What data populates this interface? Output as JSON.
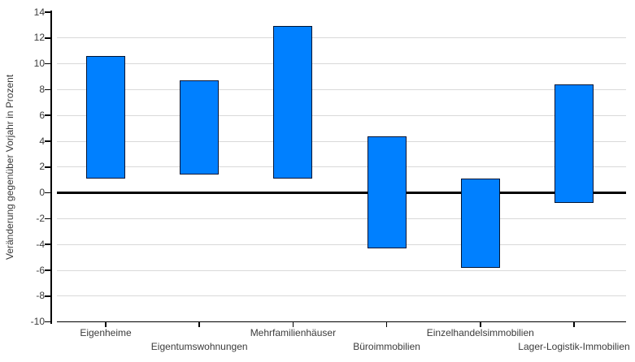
{
  "chart_data": {
    "type": "bar",
    "variant": "floating-range-columns",
    "title": "",
    "xlabel": "",
    "ylabel": "Veränderung gegenüber Vorjahr in Prozent",
    "categories": [
      "Eigenheime",
      "Eigentumswohnungen",
      "Mehrfamilienhäuser",
      "Büroimmobilien",
      "Einzelhandelsimmobilien",
      "Lager-Logistik-Immobilien"
    ],
    "series": [
      {
        "name": "Veränderung gegenüber Vorjahr in Prozent",
        "ranges": [
          {
            "low": 1.1,
            "high": 10.6
          },
          {
            "low": 1.4,
            "high": 8.7
          },
          {
            "low": 1.1,
            "high": 12.9
          },
          {
            "low": -4.3,
            "high": 4.4
          },
          {
            "low": -5.8,
            "high": 1.1
          },
          {
            "low": -0.8,
            "high": 8.4
          }
        ]
      }
    ],
    "ylim": [
      -10,
      14
    ],
    "ytick_step": 2,
    "yticks": [
      14,
      12,
      10,
      8,
      6,
      4,
      2,
      0,
      -2,
      -4,
      -6,
      -8,
      -10
    ],
    "ytick_labels": [
      "14",
      "12",
      "10",
      "8",
      "6",
      "4",
      "2",
      "0",
      "-2",
      "-4",
      "-6",
      "-8",
      "-10"
    ],
    "grid": true,
    "zero_baseline": true,
    "legend": false,
    "label_stagger": "alternating-two-rows",
    "colors": {
      "bar_fill": "#0080ff",
      "bar_border": "#001433",
      "gridline": "#d9d9d9",
      "axis": "#000000",
      "zero_line": "#000000",
      "text": "#3b3b3b",
      "background": "#ffffff"
    }
  }
}
